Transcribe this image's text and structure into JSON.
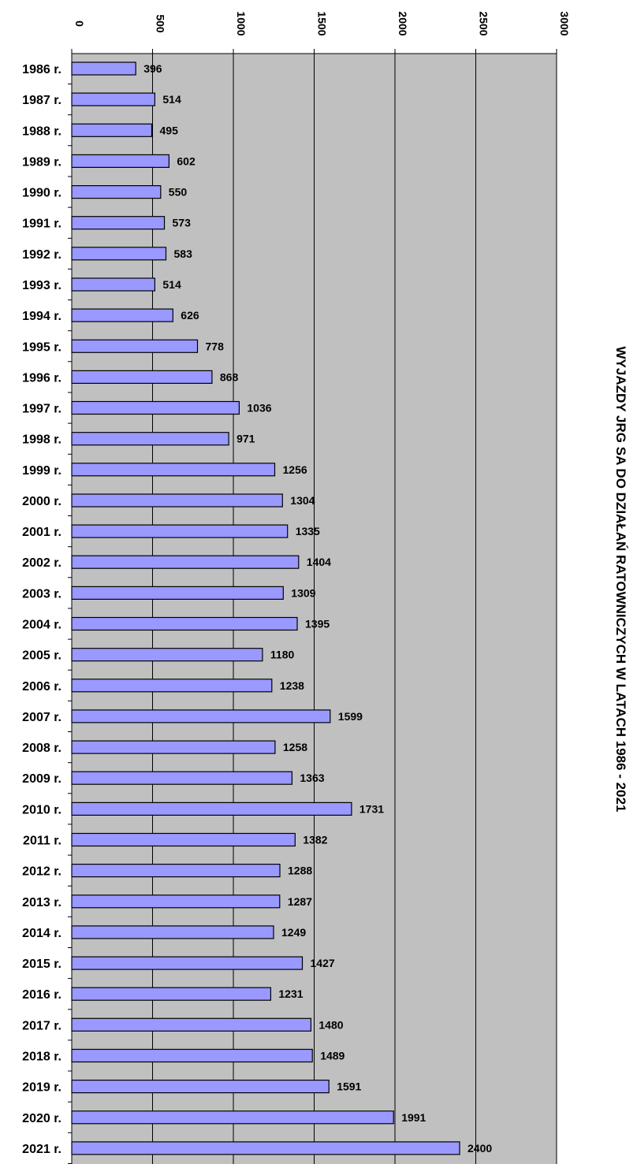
{
  "chart_data": {
    "type": "bar",
    "orientation": "horizontal",
    "title": "WYJAZDY  JRG  SA  DO  DZIAŁAŃ  RATOWNICZYCH  W  LATACH  1986 - 2021",
    "xlabel": "",
    "ylabel": "",
    "xlim": [
      0,
      3000
    ],
    "ticks": [
      "0",
      "500",
      "1000",
      "1500",
      "2000",
      "2500",
      "3000"
    ],
    "categories": [
      "1986 r.",
      "1987 r.",
      "1988 r.",
      "1989 r.",
      "1990 r.",
      "1991 r.",
      "1992 r.",
      "1993 r.",
      "1994 r.",
      "1995 r.",
      "1996 r.",
      "1997 r.",
      "1998 r.",
      "1999 r.",
      "2000 r.",
      "2001 r.",
      "2002 r.",
      "2003 r.",
      "2004 r.",
      "2005 r.",
      "2006 r.",
      "2007 r.",
      "2008 r.",
      "2009 r.",
      "2010 r.",
      "2011 r.",
      "2012 r.",
      "2013 r.",
      "2014 r.",
      "2015 r.",
      "2016 r.",
      "2017 r.",
      "2018 r.",
      "2019 r.",
      "2020 r.",
      "2021 r."
    ],
    "values": [
      396,
      514,
      495,
      602,
      550,
      573,
      583,
      514,
      626,
      778,
      868,
      1036,
      971,
      1256,
      1304,
      1335,
      1404,
      1309,
      1395,
      1180,
      1238,
      1599,
      1258,
      1363,
      1731,
      1382,
      1288,
      1287,
      1249,
      1427,
      1231,
      1480,
      1489,
      1591,
      1991,
      2400
    ],
    "grid": true,
    "legend": "none",
    "colors": {
      "bar": "#9999ff",
      "plot_bg": "#c0c0c0",
      "grid": "#000000"
    }
  }
}
